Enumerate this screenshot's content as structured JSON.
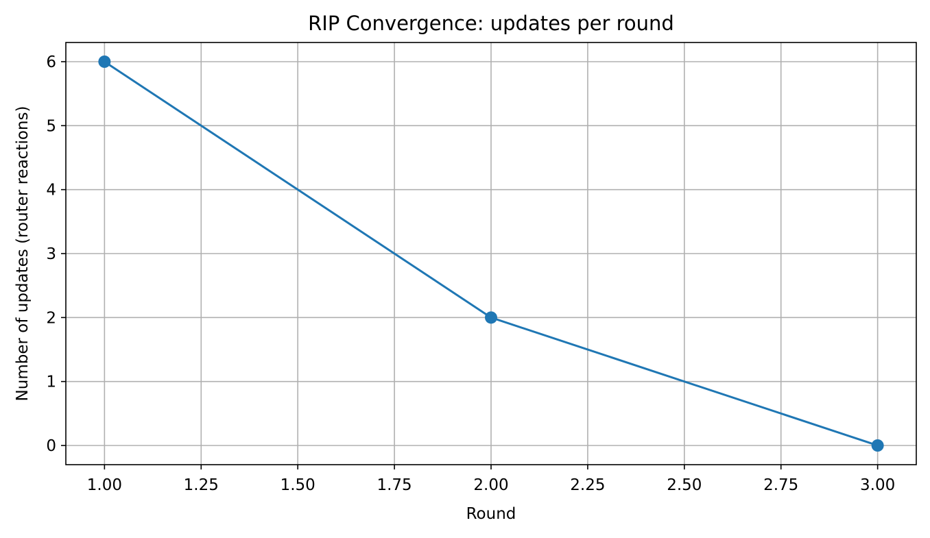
{
  "chart_data": {
    "type": "line",
    "title": "RIP Convergence: updates per round",
    "xlabel": "Round",
    "ylabel": "Number of updates (router reactions)",
    "xlim": [
      0.9,
      3.1
    ],
    "ylim": [
      -0.3,
      6.3
    ],
    "x_ticks": [
      "1.00",
      "1.25",
      "1.50",
      "1.75",
      "2.00",
      "2.25",
      "2.50",
      "2.75",
      "3.00"
    ],
    "y_ticks": [
      "0",
      "1",
      "2",
      "3",
      "4",
      "5",
      "6"
    ],
    "grid": true,
    "series": [
      {
        "color": "#1f77b4",
        "marker": "circle",
        "x": [
          1,
          2,
          3
        ],
        "y": [
          6,
          2,
          0
        ]
      }
    ]
  }
}
